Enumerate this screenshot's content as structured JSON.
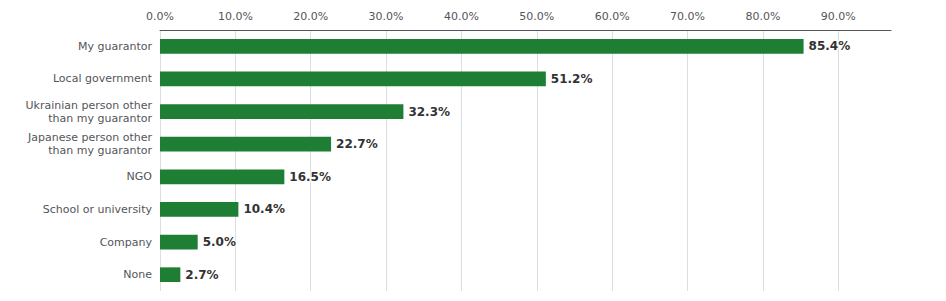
{
  "chart_data": {
    "type": "bar",
    "orientation": "horizontal",
    "categories": [
      "None",
      "Company",
      "School or university",
      "NGO",
      "Japanese person other\nthan my guarantor",
      "Ukrainian person other\nthan my guarantor",
      "Local government",
      "My guarantor"
    ],
    "values": [
      2.7,
      5.0,
      10.4,
      16.5,
      22.7,
      32.3,
      51.2,
      85.4
    ],
    "value_labels": [
      "2.7%",
      "5.0%",
      "10.4%",
      "16.5%",
      "22.7%",
      "32.3%",
      "51.2%",
      "85.4%"
    ],
    "data_labels": true,
    "color": "#1e7e34",
    "xlim": [
      0,
      97
    ],
    "xticks": [
      {
        "value": 0,
        "label": "0.0%"
      },
      {
        "value": 10,
        "label": "10.0%"
      },
      {
        "value": 20,
        "label": "20.0%"
      },
      {
        "value": 30,
        "label": "30.0%"
      },
      {
        "value": 40,
        "label": "40.0%"
      },
      {
        "value": 50,
        "label": "50.0%"
      },
      {
        "value": 60,
        "label": "60.0%"
      },
      {
        "value": 70,
        "label": "70.0%"
      },
      {
        "value": 80,
        "label": "80.0%"
      },
      {
        "value": 90,
        "label": "90.0%"
      }
    ],
    "grid": true
  }
}
